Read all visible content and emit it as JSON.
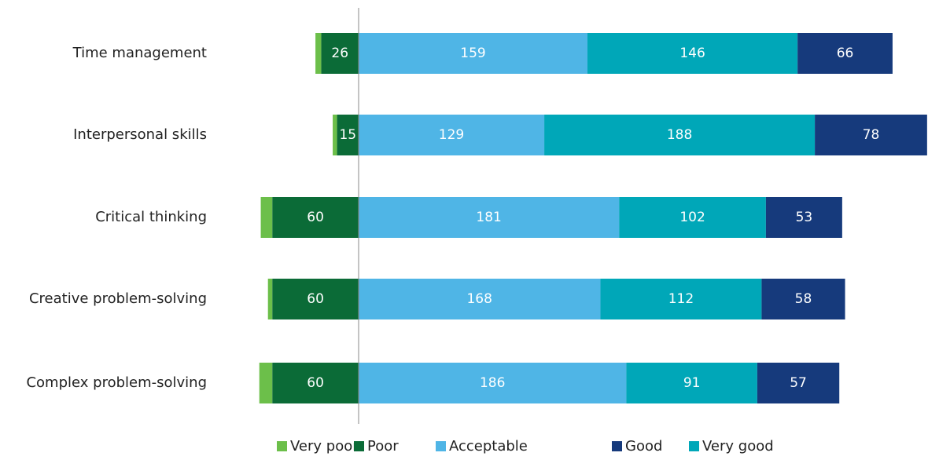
{
  "chart_data": {
    "type": "diverging-bar",
    "categories": [
      "Time management",
      "Interpersonal skills",
      "Critical thinking",
      "Creative problem-solving",
      "Complex problem-solving"
    ],
    "series": [
      {
        "name": "Very poor",
        "color": "#6cbf4a",
        "values": [
          4,
          3,
          8,
          3,
          9
        ]
      },
      {
        "name": "Poor",
        "color": "#0b6b37",
        "values": [
          26,
          15,
          60,
          60,
          60
        ]
      },
      {
        "name": "Acceptable",
        "color": "#4fb5e6",
        "values": [
          159,
          129,
          181,
          168,
          186
        ]
      },
      {
        "name": "Good",
        "color": "#163a7c",
        "values": [
          66,
          78,
          53,
          58,
          57
        ]
      },
      {
        "name": "Very good",
        "color": "#00a7b8",
        "values": [
          146,
          188,
          102,
          112,
          91
        ]
      }
    ]
  }
}
